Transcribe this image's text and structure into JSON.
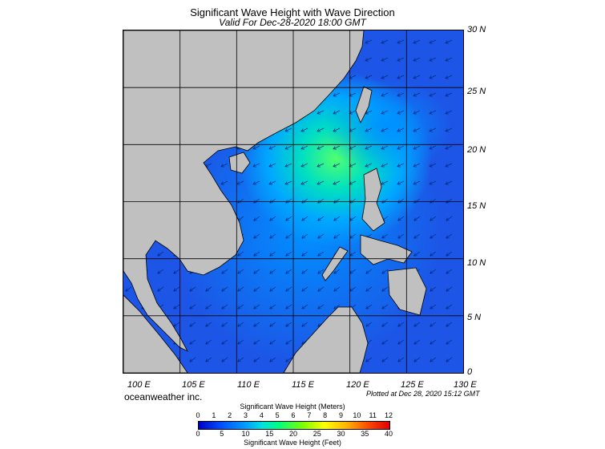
{
  "title": "Significant Wave Height with Wave Direction",
  "subtitle": "Valid For Dec-28-2020 18:00 GMT",
  "lat_labels": [
    "30 N",
    "25 N",
    "20 N",
    "15 N",
    "10 N",
    "5 N",
    "0"
  ],
  "lon_labels": [
    "100 E",
    "105 E",
    "110 E",
    "115 E",
    "120 E",
    "125 E",
    "130 E"
  ],
  "credit": "oceanweather inc.",
  "plotted": "Plotted at Dec 28, 2020 15:12 GMT",
  "colorbar": {
    "meters_title": "Significant Wave Height (Meters)",
    "meters_ticks": [
      "0",
      "1",
      "2",
      "3",
      "4",
      "5",
      "6",
      "7",
      "8",
      "9",
      "10",
      "11",
      "12"
    ],
    "feet_ticks": [
      "0",
      "5",
      "10",
      "15",
      "20",
      "25",
      "30",
      "35",
      "40"
    ],
    "feet_title": "Significant Wave Height (Feet)"
  },
  "colors": {
    "land": "#c0c0c0",
    "sea_low": "#1a4fe0",
    "sea_mid": "#00a0ff",
    "sea_high": "#40ff80"
  },
  "map": {
    "lon_range": [
      100,
      130
    ],
    "lat_range": [
      0,
      30
    ],
    "wave_direction": "from northeast"
  }
}
